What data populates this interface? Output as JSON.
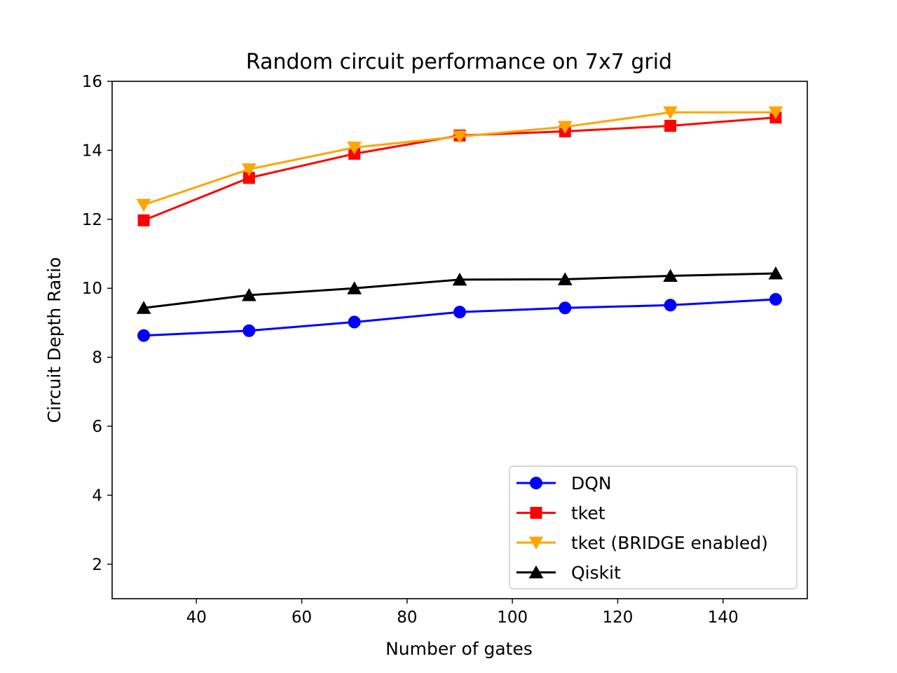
{
  "chart_data": {
    "type": "line",
    "title": "Random circuit performance on 7x7 grid",
    "xlabel": "Number of gates",
    "ylabel": "Circuit Depth Ratio",
    "xlim": [
      24,
      156
    ],
    "ylim": [
      1,
      16
    ],
    "xticks": [
      40,
      60,
      80,
      100,
      120,
      140
    ],
    "yticks": [
      2,
      4,
      6,
      8,
      10,
      12,
      14,
      16
    ],
    "grid": false,
    "legend_position": "lower-right",
    "x": [
      30,
      50,
      70,
      90,
      110,
      130,
      150
    ],
    "series": [
      {
        "name": "DQN",
        "color": "#0000ff",
        "marker": "circle",
        "values": [
          8.63,
          8.77,
          9.02,
          9.31,
          9.43,
          9.51,
          9.68
        ]
      },
      {
        "name": "tket",
        "color": "#ff0000",
        "marker": "square",
        "values": [
          11.97,
          13.2,
          13.9,
          14.43,
          14.55,
          14.71,
          14.95
        ]
      },
      {
        "name": "tket (BRIDGE enabled)",
        "color": "#ffa500",
        "marker": "triangle-down",
        "values": [
          12.42,
          13.45,
          14.08,
          14.4,
          14.68,
          15.1,
          15.1
        ]
      },
      {
        "name": "Qiskit",
        "color": "#000000",
        "marker": "triangle-up",
        "values": [
          9.43,
          9.8,
          10.0,
          10.25,
          10.26,
          10.36,
          10.43
        ]
      }
    ]
  }
}
